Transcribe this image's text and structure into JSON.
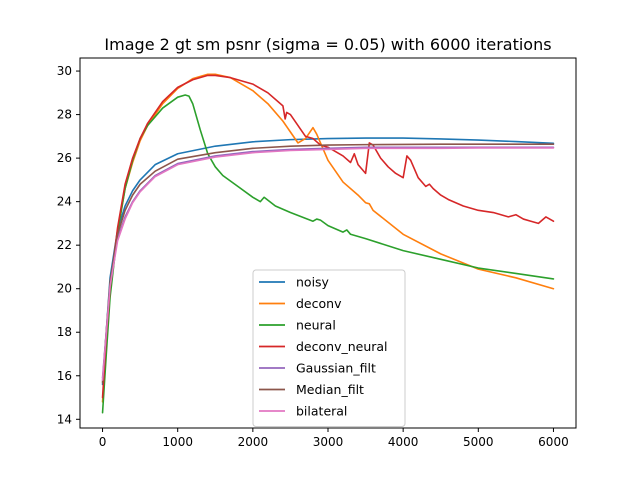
{
  "chart_data": {
    "type": "line",
    "title": "Image 2 gt sm psnr (sigma = 0.05) with 6000 iterations",
    "xlabel": "",
    "ylabel": "",
    "xlim": [
      -300,
      6300
    ],
    "ylim": [
      13.6,
      30.6
    ],
    "xticks": [
      0,
      1000,
      2000,
      3000,
      4000,
      5000,
      6000
    ],
    "yticks": [
      14,
      16,
      18,
      20,
      22,
      24,
      26,
      28,
      30
    ],
    "grid": false,
    "legend_position": "lower-center",
    "series": [
      {
        "name": "noisy",
        "color": "#1f77b4",
        "x": [
          0,
          100,
          200,
          300,
          400,
          500,
          700,
          1000,
          1500,
          2000,
          2500,
          3000,
          3500,
          4000,
          4500,
          5000,
          5500,
          6000
        ],
        "y": [
          15.6,
          20.5,
          22.7,
          23.8,
          24.5,
          25.0,
          25.7,
          26.2,
          26.55,
          26.75,
          26.85,
          26.9,
          26.92,
          26.92,
          26.88,
          26.83,
          26.76,
          26.68
        ]
      },
      {
        "name": "deconv",
        "color": "#ff7f0e",
        "x": [
          0,
          50,
          100,
          200,
          300,
          400,
          500,
          600,
          800,
          1000,
          1200,
          1400,
          1500,
          1700,
          2000,
          2200,
          2400,
          2500,
          2600,
          2700,
          2800,
          2850,
          3000,
          3200,
          3400,
          3500,
          3550,
          3600,
          4000,
          4500,
          5000,
          5500,
          6000
        ],
        "y": [
          14.8,
          17.5,
          19.8,
          22.6,
          24.6,
          25.8,
          26.8,
          27.5,
          28.5,
          29.2,
          29.65,
          29.85,
          29.85,
          29.7,
          29.1,
          28.5,
          27.7,
          27.2,
          26.7,
          26.9,
          27.4,
          27.1,
          25.9,
          24.9,
          24.3,
          23.95,
          23.9,
          23.6,
          22.5,
          21.6,
          20.9,
          20.5,
          20.0
        ]
      },
      {
        "name": "neural",
        "color": "#2ca02c",
        "x": [
          0,
          50,
          100,
          200,
          300,
          400,
          500,
          600,
          800,
          1000,
          1100,
          1150,
          1200,
          1300,
          1400,
          1500,
          1600,
          1800,
          2000,
          2100,
          2150,
          2300,
          2500,
          2800,
          2850,
          2900,
          3000,
          3200,
          3250,
          3300,
          3500,
          4000,
          4500,
          5000,
          5500,
          6000
        ],
        "y": [
          14.3,
          17.0,
          19.6,
          22.6,
          24.6,
          25.9,
          26.9,
          27.5,
          28.3,
          28.8,
          28.9,
          28.85,
          28.5,
          27.3,
          26.2,
          25.6,
          25.2,
          24.7,
          24.2,
          24.0,
          24.2,
          23.8,
          23.5,
          23.1,
          23.2,
          23.15,
          22.9,
          22.6,
          22.7,
          22.5,
          22.3,
          21.75,
          21.35,
          20.95,
          20.7,
          20.45
        ]
      },
      {
        "name": "deconv_neural",
        "color": "#d62728",
        "x": [
          0,
          50,
          100,
          200,
          300,
          400,
          500,
          600,
          800,
          1000,
          1200,
          1400,
          1500,
          1700,
          2000,
          2200,
          2400,
          2430,
          2450,
          2500,
          2600,
          2700,
          2800,
          2900,
          3000,
          3200,
          3300,
          3350,
          3400,
          3500,
          3550,
          3600,
          3700,
          3800,
          3900,
          4000,
          4050,
          4100,
          4200,
          4300,
          4350,
          4400,
          4500,
          4600,
          4800,
          5000,
          5200,
          5400,
          5500,
          5600,
          5700,
          5800,
          5900,
          6000
        ],
        "y": [
          15.0,
          17.8,
          20.0,
          22.8,
          24.8,
          26.0,
          26.9,
          27.6,
          28.6,
          29.25,
          29.6,
          29.8,
          29.8,
          29.7,
          29.4,
          29.0,
          28.4,
          27.8,
          28.1,
          28.0,
          27.5,
          27.0,
          26.9,
          26.6,
          26.5,
          26.1,
          25.8,
          26.2,
          25.7,
          25.3,
          26.7,
          26.6,
          26.0,
          25.6,
          25.3,
          25.1,
          26.1,
          25.9,
          25.1,
          24.7,
          24.8,
          24.6,
          24.3,
          24.1,
          23.8,
          23.6,
          23.5,
          23.3,
          23.4,
          23.2,
          23.1,
          23.0,
          23.3,
          23.1
        ]
      },
      {
        "name": "Gaussian_filt",
        "color": "#9467bd",
        "x": [
          0,
          100,
          200,
          300,
          400,
          500,
          700,
          1000,
          1500,
          2000,
          2500,
          3000,
          3500,
          4000,
          4500,
          5000,
          5500,
          6000
        ],
        "y": [
          15.9,
          20.2,
          22.3,
          23.3,
          24.0,
          24.5,
          25.2,
          25.75,
          26.1,
          26.3,
          26.4,
          26.45,
          26.5,
          26.5,
          26.5,
          26.5,
          26.5,
          26.5
        ]
      },
      {
        "name": "Median_filt",
        "color": "#8c564b",
        "x": [
          0,
          100,
          200,
          300,
          400,
          500,
          700,
          1000,
          1500,
          2000,
          2500,
          3000,
          3500,
          4000,
          4500,
          5000,
          5500,
          6000
        ],
        "y": [
          15.7,
          20.3,
          22.5,
          23.6,
          24.3,
          24.8,
          25.4,
          25.95,
          26.25,
          26.45,
          26.55,
          26.6,
          26.62,
          26.63,
          26.64,
          26.64,
          26.64,
          26.64
        ]
      },
      {
        "name": "bilateral",
        "color": "#e377c2",
        "x": [
          0,
          100,
          200,
          300,
          400,
          500,
          700,
          1000,
          1500,
          2000,
          2500,
          3000,
          3500,
          4000,
          4500,
          5000,
          5500,
          6000
        ],
        "y": [
          15.8,
          20.1,
          22.2,
          23.2,
          23.95,
          24.45,
          25.15,
          25.7,
          26.05,
          26.25,
          26.35,
          26.4,
          26.45,
          26.45,
          26.45,
          26.47,
          26.47,
          26.47
        ]
      }
    ]
  }
}
